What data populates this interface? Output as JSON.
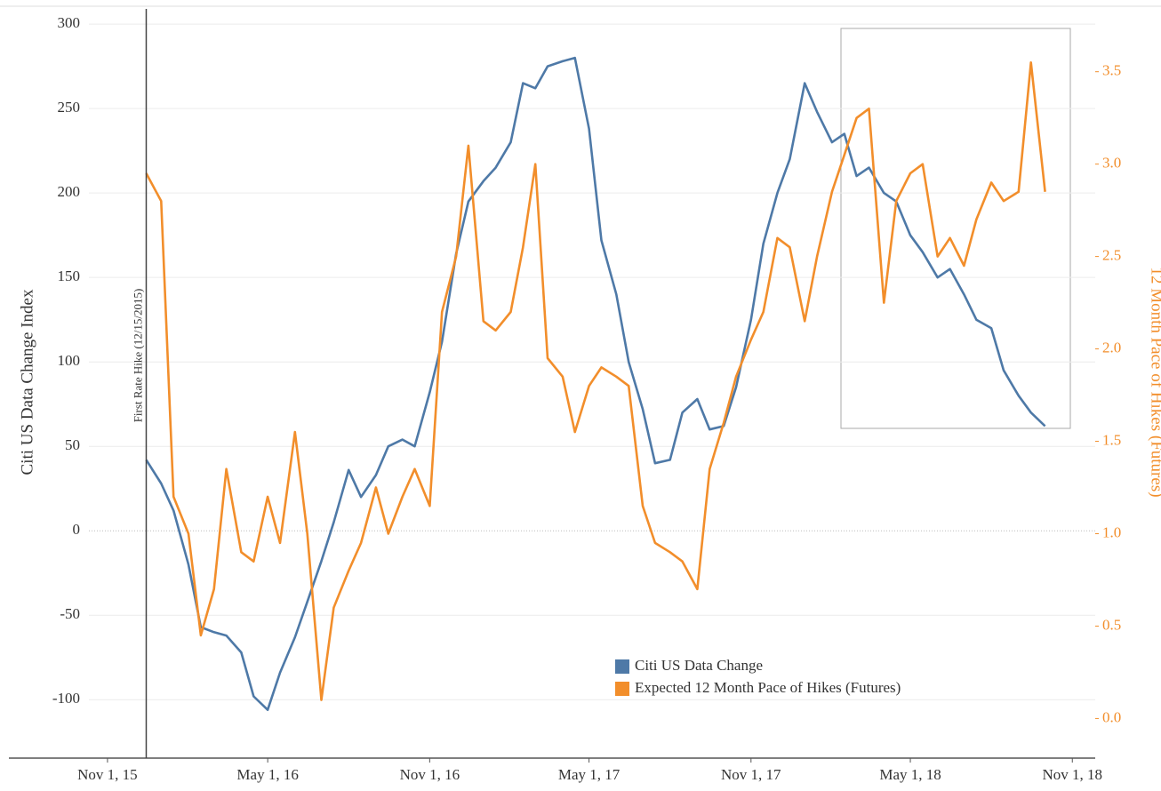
{
  "chart_data": {
    "type": "line",
    "y_label": "Citi US Data Change Index",
    "y2_label": "12 Month Pace of Hikes (Futures)",
    "annotation": {
      "x": "2015-12-15",
      "label": "First Rate Hike (12/15/2015)"
    },
    "legend": "bottom center",
    "grid": true,
    "xlim": [
      "2015-07-12",
      "2018-11-27"
    ],
    "xticks": [
      {
        "value": "2015-11-01",
        "label": "Nov 1, 15"
      },
      {
        "value": "2016-05-01",
        "label": "May 1, 16"
      },
      {
        "value": "2016-11-01",
        "label": "Nov 1, 16"
      },
      {
        "value": "2017-05-01",
        "label": "May 1, 17"
      },
      {
        "value": "2017-11-01",
        "label": "Nov 1, 17"
      },
      {
        "value": "2018-05-01",
        "label": "May 1, 18"
      },
      {
        "value": "2018-11-01",
        "label": "Nov 1, 18"
      }
    ],
    "ylim": [
      -133,
      309
    ],
    "yticks": [
      -100,
      -50,
      0,
      50,
      100,
      150,
      200,
      250,
      300
    ],
    "y2lim": [
      -0.2,
      3.84
    ],
    "y2ticks": [
      {
        "value": 0,
        "label": "0.0"
      },
      0.5,
      {
        "value": 1,
        "label": "1.0"
      },
      1.5,
      {
        "value": 2,
        "label": "2.0"
      },
      2.5,
      {
        "value": 3,
        "label": "3.0"
      },
      3.5
    ],
    "x": [
      "2015-12-15",
      "2016-01-01",
      "2016-01-15",
      "2016-02-01",
      "2016-02-15",
      "2016-03-01",
      "2016-03-15",
      "2016-04-01",
      "2016-04-15",
      "2016-05-01",
      "2016-05-15",
      "2016-06-01",
      "2016-06-15",
      "2016-07-01",
      "2016-07-15",
      "2016-08-01",
      "2016-08-15",
      "2016-09-01",
      "2016-09-15",
      "2016-10-01",
      "2016-10-15",
      "2016-11-01",
      "2016-11-15",
      "2016-12-01",
      "2016-12-15",
      "2017-01-01",
      "2017-01-15",
      "2017-02-01",
      "2017-02-15",
      "2017-03-01",
      "2017-03-15",
      "2017-04-01",
      "2017-04-15",
      "2017-05-01",
      "2017-05-15",
      "2017-06-01",
      "2017-06-15",
      "2017-07-01",
      "2017-07-15",
      "2017-08-01",
      "2017-08-15",
      "2017-09-01",
      "2017-09-15",
      "2017-10-01",
      "2017-10-15",
      "2017-11-01",
      "2017-11-15",
      "2017-12-01",
      "2017-12-15",
      "2018-01-01",
      "2018-01-15",
      "2018-02-01",
      "2018-02-15",
      "2018-03-01",
      "2018-03-15",
      "2018-04-01",
      "2018-04-15",
      "2018-05-01",
      "2018-05-15",
      "2018-06-01",
      "2018-06-15",
      "2018-07-01",
      "2018-07-15",
      "2018-08-01",
      "2018-08-15",
      "2018-09-01",
      "2018-09-15",
      "2018-10-01"
    ],
    "series": [
      {
        "name": "Citi US Data Change",
        "color": "#4e79a7",
        "axis": "y",
        "values": [
          42,
          28,
          12,
          -20,
          -57,
          -60,
          -62,
          -72,
          -98,
          -106,
          -84,
          -63,
          -42,
          -18,
          5,
          36,
          20,
          33,
          50,
          54,
          50,
          82,
          112,
          164,
          195,
          207,
          215,
          230,
          265,
          262,
          275,
          278,
          280,
          238,
          172,
          140,
          100,
          72,
          40,
          42,
          70,
          78,
          60,
          62,
          85,
          125,
          170,
          200,
          220,
          265,
          248,
          230,
          235,
          210,
          215,
          200,
          195,
          175,
          165,
          150,
          155,
          140,
          125,
          120,
          95,
          80,
          70,
          62
        ]
      },
      {
        "name": "Expected 12 Month Pace of Hikes (Futures)",
        "color": "#f28e2b",
        "axis": "y2",
        "values": [
          2.95,
          2.8,
          1.2,
          1.0,
          0.45,
          0.7,
          1.35,
          0.9,
          0.85,
          1.2,
          0.95,
          1.55,
          1.0,
          0.1,
          0.6,
          0.8,
          0.95,
          1.25,
          1.0,
          1.2,
          1.35,
          1.15,
          2.2,
          2.5,
          3.1,
          2.15,
          2.1,
          2.2,
          2.55,
          3.0,
          1.95,
          1.85,
          1.55,
          1.8,
          1.9,
          1.85,
          1.8,
          1.15,
          0.95,
          0.9,
          0.85,
          0.7,
          1.35,
          1.6,
          1.85,
          2.05,
          2.2,
          2.6,
          2.55,
          2.15,
          2.5,
          2.85,
          3.05,
          3.25,
          3.3,
          2.25,
          2.8,
          2.95,
          3.0,
          2.5,
          2.6,
          2.45,
          2.7,
          2.9,
          2.8,
          2.85,
          3.55,
          2.85
        ]
      }
    ]
  }
}
